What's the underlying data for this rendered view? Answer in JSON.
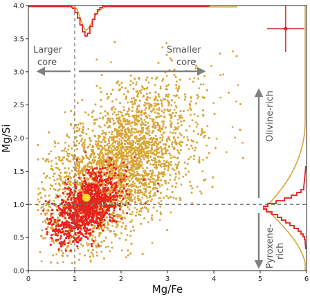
{
  "chart_data": {
    "type": "scatter",
    "xlabel": "Mg/Fe",
    "ylabel": "Mg/Si",
    "xlim": [
      0,
      6
    ],
    "ylim": [
      0,
      4.0
    ],
    "xticks": [
      "0",
      "1",
      "2",
      "3",
      "4",
      "5",
      "6"
    ],
    "yticks": [
      "0.0",
      "0.5",
      "1.0",
      "1.5",
      "2.0",
      "2.5",
      "3.0",
      "3.5",
      "4.0"
    ],
    "reference_lines": {
      "x": 1.0,
      "y": 1.0
    },
    "series": [
      {
        "color": "#d9a63a",
        "distribution": {
          "x_center": 1.9,
          "y_center": 1.55,
          "x_spread": 0.75,
          "y_spread": 0.5,
          "x_range": [
            0.2,
            5.0
          ],
          "y_range": [
            0.1,
            3.9
          ]
        },
        "count": 9000
      },
      {
        "color": "#e8231e",
        "distribution": {
          "x_center": 1.25,
          "y_center": 0.95,
          "x_spread": 0.35,
          "y_spread": 0.22,
          "x_range": [
            0.3,
            4.0
          ],
          "y_range": [
            0.3,
            2.0
          ]
        },
        "count": 1100
      }
    ],
    "highlight_point": {
      "x": 1.25,
      "y": 1.1,
      "color": "#ffe030"
    },
    "error_bar_example": {
      "x": 5.55,
      "y": 3.65,
      "xerr": 0.4,
      "yerr": 0.35,
      "color": "#d42020"
    },
    "marginal_x_histogram": {
      "position": "top",
      "dip_at": 1.25
    },
    "marginal_y_histogram": {
      "position": "right",
      "peak_at": 0.95
    },
    "annotations": [
      {
        "text_lines": [
          "Larger",
          "core"
        ],
        "arrow": "left"
      },
      {
        "text_lines": [
          "Smaller",
          "core"
        ],
        "arrow": "right"
      },
      {
        "text": "Olivine-rich",
        "arrow": "up"
      },
      {
        "text_lines": [
          "Pyroxene-",
          "rich"
        ],
        "arrow": "down"
      }
    ]
  }
}
